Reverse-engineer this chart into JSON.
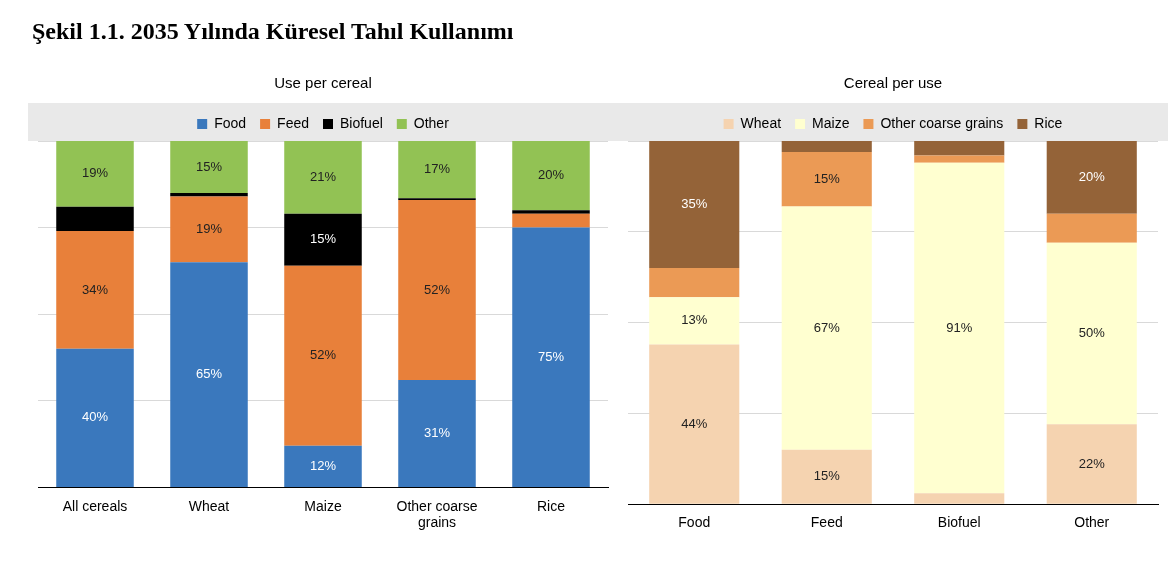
{
  "chart_data": [
    {
      "type": "bar",
      "title": "Use per cereal",
      "annotations": [
        "Şekil 1.1. 2035 Yılında Küresel Tahıl Kullanımı"
      ],
      "categories": [
        "All cereals",
        "Wheat",
        "Maize",
        "Other coarse grains",
        "Rice"
      ],
      "stacked": true,
      "ylim": [
        0,
        100
      ],
      "yticks": [
        {
          "value": 0,
          "label": null
        },
        {
          "value": 25,
          "label": null
        },
        {
          "value": 50,
          "label": null
        },
        {
          "value": 75,
          "label": null
        },
        {
          "value": 100,
          "label": null
        }
      ],
      "tick_labels": "x",
      "grid": "y",
      "legend": "top",
      "series": [
        {
          "name": "Food",
          "color": "#3a78bd",
          "values": [
            40,
            65,
            12,
            31,
            75
          ],
          "value_labels": [
            "40%",
            "65%",
            "12%",
            "31%",
            "75%"
          ]
        },
        {
          "name": "Feed",
          "color": "#e8803a",
          "values": [
            34,
            19,
            52,
            52,
            4
          ],
          "value_labels": [
            "34%",
            "19%",
            "52%",
            "52%",
            null
          ]
        },
        {
          "name": "Biofuel",
          "color": "#000000",
          "values": [
            7,
            1,
            15,
            0.5,
            1
          ],
          "value_labels": [
            null,
            null,
            "15%",
            null,
            null
          ]
        },
        {
          "name": "Other",
          "color": "#92c254",
          "values": [
            19,
            15,
            21,
            16.5,
            20
          ],
          "value_labels": [
            "19%",
            "15%",
            "21%",
            "17%",
            "20%"
          ]
        }
      ]
    },
    {
      "type": "bar",
      "title": "Cereal per use",
      "categories": [
        "Food",
        "Feed",
        "Biofuel",
        "Other"
      ],
      "stacked": true,
      "ylim": [
        0,
        100
      ],
      "yticks": [
        {
          "value": 0,
          "label": null
        },
        {
          "value": 25,
          "label": null
        },
        {
          "value": 50,
          "label": null
        },
        {
          "value": 75,
          "label": null
        },
        {
          "value": 100,
          "label": null
        }
      ],
      "tick_labels": "x",
      "grid": "y",
      "legend": "top",
      "series": [
        {
          "name": "Wheat",
          "color": "#f5d3b0",
          "values": [
            44,
            15,
            3,
            22
          ],
          "value_labels": [
            "44%",
            "15%",
            null,
            "22%"
          ]
        },
        {
          "name": "Maize",
          "color": "#ffffd0",
          "values": [
            13,
            67,
            91,
            50
          ],
          "value_labels": [
            "13%",
            "67%",
            "91%",
            "50%"
          ]
        },
        {
          "name": "Other coarse grains",
          "color": "#eb9a55",
          "values": [
            8,
            15,
            2,
            8
          ],
          "value_labels": [
            null,
            "15%",
            null,
            null
          ]
        },
        {
          "name": "Rice",
          "color": "#946338",
          "values": [
            35,
            3,
            4,
            20
          ],
          "value_labels": [
            "35%",
            null,
            null,
            "20%"
          ]
        }
      ]
    }
  ]
}
